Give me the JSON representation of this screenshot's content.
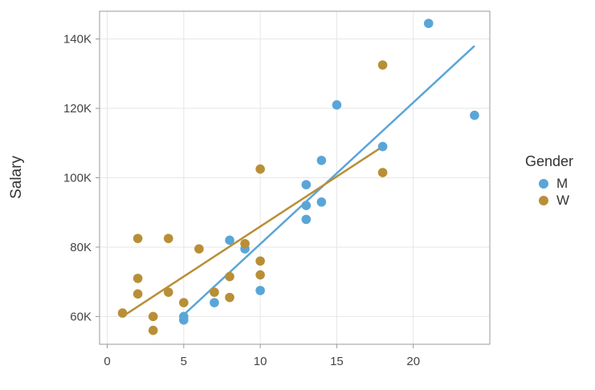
{
  "chart_data": {
    "type": "scatter",
    "title": "",
    "xlabel": "",
    "ylabel": "Salary",
    "xlim": [
      -0.5,
      25
    ],
    "ylim": [
      52000,
      148000
    ],
    "x_ticks": [
      0,
      5,
      10,
      15,
      20
    ],
    "x_tick_labels": [
      "0",
      "5",
      "10",
      "15",
      "20"
    ],
    "y_ticks": [
      60000,
      80000,
      100000,
      120000,
      140000
    ],
    "y_tick_labels": [
      "60K",
      "80K",
      "100K",
      "120K",
      "140K"
    ],
    "grid": true,
    "legend": {
      "title": "Gender",
      "placement": "right"
    },
    "series": [
      {
        "name": "M",
        "color": "#5aa5d8",
        "points": [
          [
            5,
            59000
          ],
          [
            5,
            60000
          ],
          [
            7,
            64000
          ],
          [
            8,
            82000
          ],
          [
            9,
            79500
          ],
          [
            10,
            67500
          ],
          [
            13,
            98000
          ],
          [
            13,
            92000
          ],
          [
            13,
            88000
          ],
          [
            14,
            105000
          ],
          [
            14,
            93000
          ],
          [
            15,
            121000
          ],
          [
            18,
            109000
          ],
          [
            21,
            144500
          ],
          [
            24,
            118000
          ]
        ],
        "trend": [
          [
            5,
            60500
          ],
          [
            24,
            138000
          ]
        ]
      },
      {
        "name": "W",
        "color": "#b88f36",
        "points": [
          [
            1,
            61000
          ],
          [
            2,
            82500
          ],
          [
            2,
            71000
          ],
          [
            2,
            66500
          ],
          [
            3,
            60000
          ],
          [
            3,
            56000
          ],
          [
            4,
            82500
          ],
          [
            4,
            67000
          ],
          [
            5,
            64000
          ],
          [
            6,
            79500
          ],
          [
            7,
            67000
          ],
          [
            8,
            71500
          ],
          [
            8,
            65500
          ],
          [
            9,
            81000
          ],
          [
            10,
            102500
          ],
          [
            10,
            76000
          ],
          [
            10,
            72000
          ],
          [
            18,
            132500
          ],
          [
            18,
            101500
          ]
        ],
        "trend": [
          [
            1,
            60000
          ],
          [
            18,
            109000
          ]
        ]
      }
    ]
  }
}
